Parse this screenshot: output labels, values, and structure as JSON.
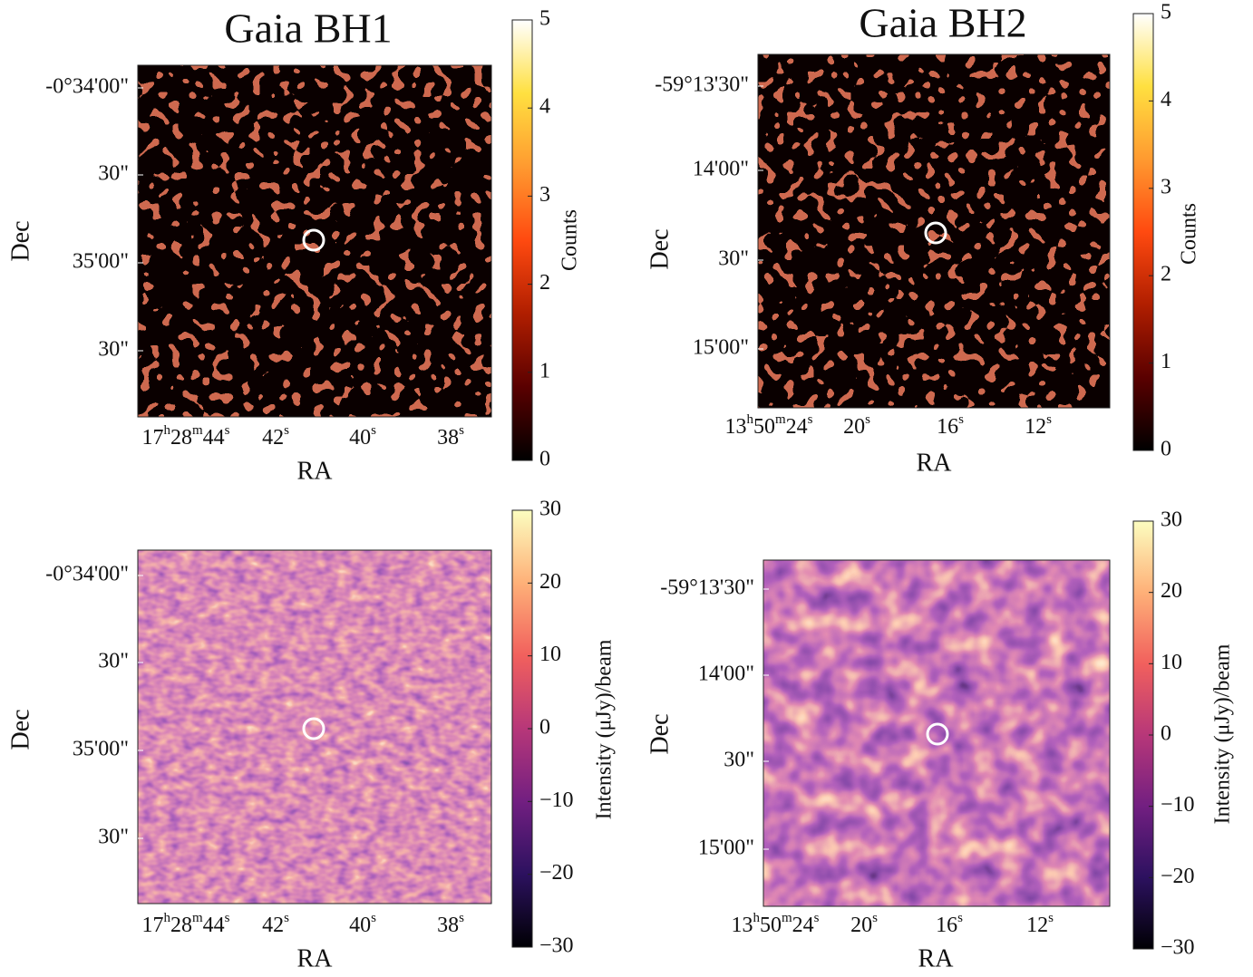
{
  "chart_data": [
    {
      "type": "image",
      "title": "Gaia BH1",
      "xlabel": "RA",
      "ylabel": "Dec",
      "xticks": [
        "17h28m44s",
        "42s",
        "40s",
        "38s"
      ],
      "yticks": [
        "-0°34'00\"",
        "30\"",
        "35'00\"",
        "30\""
      ],
      "texture": "xray",
      "colorbar": {
        "label": "Counts",
        "lim": [
          0,
          5
        ],
        "ticks": [
          0,
          1,
          2,
          3,
          4,
          5
        ],
        "colormap": [
          "#000000",
          "#5a0000",
          "#b01e00",
          "#ff4a10",
          "#ff9a30",
          "#ffe040",
          "#ffffff"
        ]
      }
    },
    {
      "type": "image",
      "title": "Gaia BH2",
      "xlabel": "RA",
      "ylabel": "Dec",
      "xticks": [
        "13h50m24s",
        "20s",
        "16s",
        "12s"
      ],
      "yticks": [
        "-59°13'30\"",
        "14'00\"",
        "30\"",
        "15'00\""
      ],
      "texture": "xray",
      "colorbar": {
        "label": "Counts",
        "lim": [
          0,
          5
        ],
        "ticks": [
          0,
          1,
          2,
          3,
          4,
          5
        ],
        "colormap": [
          "#000000",
          "#5a0000",
          "#b01e00",
          "#ff4a10",
          "#ff9a30",
          "#ffe040",
          "#ffffff"
        ]
      }
    },
    {
      "type": "image",
      "xlabel": "RA",
      "ylabel": "Dec",
      "xticks": [
        "17h28m44s",
        "42s",
        "40s",
        "38s"
      ],
      "yticks": [
        "-0°34'00\"",
        "30\"",
        "35'00\"",
        "30\""
      ],
      "texture": "radio-fine",
      "colorbar": {
        "label": "Intensity (μJy)/beam",
        "lim": [
          -30,
          30
        ],
        "ticks": [
          {
            "value": -30,
            "label": "−30"
          },
          {
            "value": -20,
            "label": "−20"
          },
          {
            "value": -10,
            "label": "−10"
          },
          0,
          10,
          20,
          30
        ],
        "colormap": [
          "#000004",
          "#2c115f",
          "#721f81",
          "#b73779",
          "#f1605d",
          "#feb078",
          "#fcfdbf"
        ]
      }
    },
    {
      "type": "image",
      "xlabel": "RA",
      "ylabel": "Dec",
      "xticks": [
        "13h50m24s",
        "20s",
        "16s",
        "12s"
      ],
      "yticks": [
        "-59°13'30\"",
        "14'00\"",
        "30\"",
        "15'00\""
      ],
      "texture": "radio-coarse",
      "colorbar": {
        "label": "Intensity (μJy)/beam",
        "lim": [
          -30,
          30
        ],
        "ticks": [
          {
            "value": -30,
            "label": "−30"
          },
          {
            "value": -20,
            "label": "−20"
          },
          {
            "value": -10,
            "label": "−10"
          },
          0,
          10,
          20,
          30
        ],
        "colormap": [
          "#000004",
          "#2c115f",
          "#721f81",
          "#b73779",
          "#f1605d",
          "#feb078",
          "#fcfdbf"
        ]
      }
    }
  ]
}
